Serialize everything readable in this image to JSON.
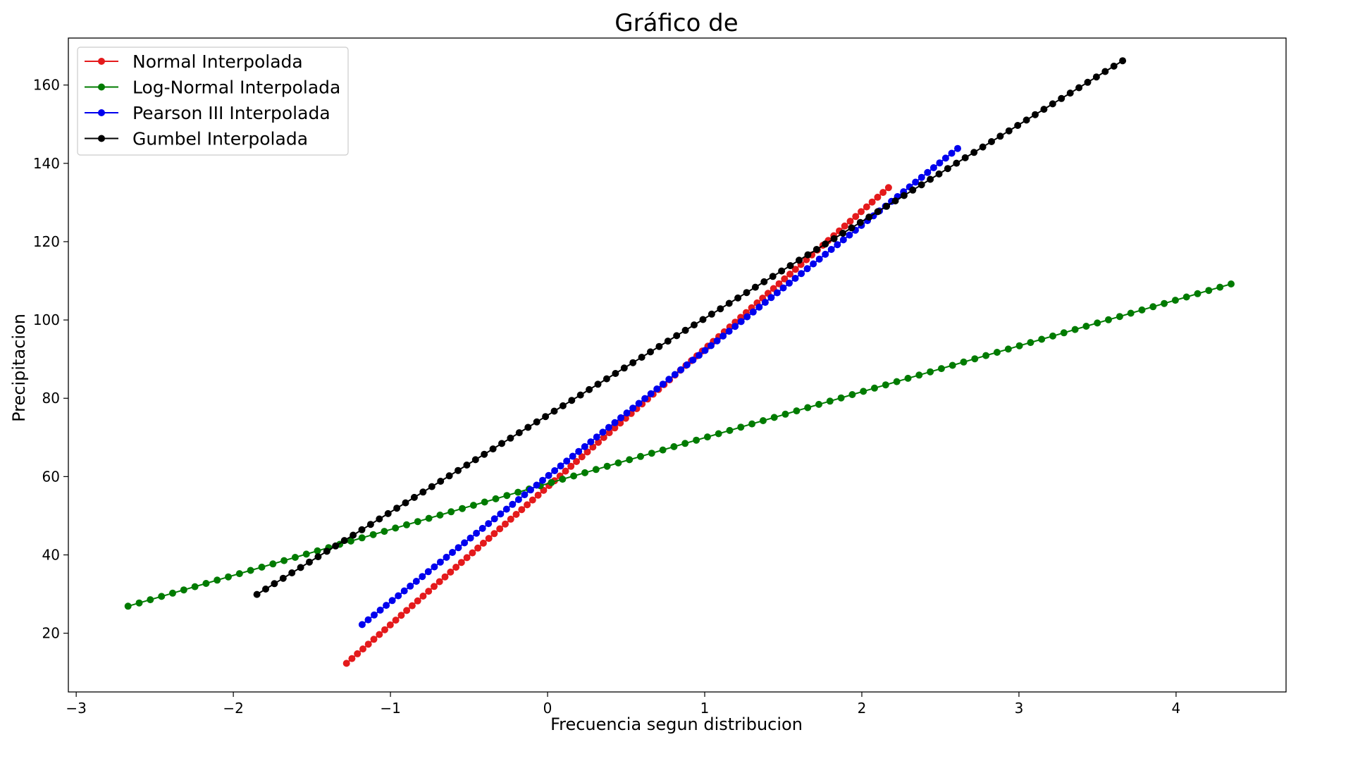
{
  "chart_data": {
    "type": "line",
    "title": "Gráfico de",
    "xlabel": "Frecuencia segun distribucion",
    "ylabel": "Precipitacion",
    "xlim": [
      -3.05,
      4.7
    ],
    "ylim": [
      5,
      172
    ],
    "x_ticks": [
      -3,
      -2,
      -1,
      0,
      1,
      2,
      3,
      4
    ],
    "x_tick_labels": [
      "−3",
      "−2",
      "−1",
      "0",
      "1",
      "2",
      "3",
      "4"
    ],
    "y_ticks": [
      20,
      40,
      60,
      80,
      100,
      120,
      140,
      160
    ],
    "y_tick_labels": [
      "20",
      "40",
      "60",
      "80",
      "100",
      "120",
      "140",
      "160"
    ],
    "grid": false,
    "legend_position": "top-left",
    "series": [
      {
        "name": "Normal Interpolada",
        "color": "#e41a1c",
        "x_start": -1.28,
        "x_end": 2.17,
        "y_start": 12.3,
        "y_end": 133.8,
        "points": 100
      },
      {
        "name": "Log-Normal Interpolada",
        "color": "#007b00",
        "x_start": -2.67,
        "x_end": 4.35,
        "y_start": 26.9,
        "y_end": 109.2,
        "points": 100
      },
      {
        "name": "Pearson III Interpolada",
        "color": "#0000ee",
        "x_start": -1.18,
        "x_end": 2.61,
        "y_start": 22.2,
        "y_end": 143.8,
        "points": 100
      },
      {
        "name": "Gumbel Interpolada",
        "color": "#000000",
        "x_start": -1.85,
        "x_end": 3.66,
        "y_start": 29.9,
        "y_end": 166.2,
        "points": 100
      }
    ]
  }
}
